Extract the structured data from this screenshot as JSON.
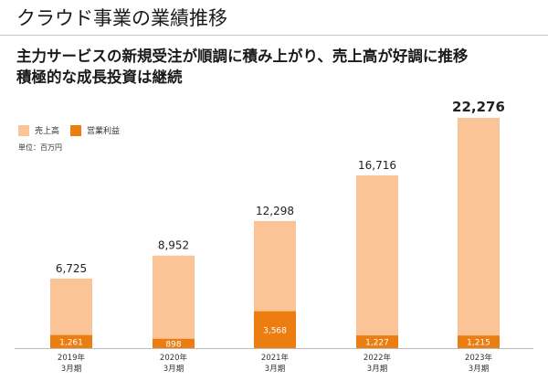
{
  "header": {
    "title": "クラウド事業の業績推移"
  },
  "headline": {
    "line1": "主力サービスの新規受注が順調に積み上がり、売上高が好調に推移",
    "line2": "積極的な成長投資は継続"
  },
  "colors": {
    "revenue": "#fbc497",
    "profit": "#ec7d10",
    "axis": "#bbbbbb"
  },
  "chart_data": {
    "type": "bar",
    "categories": [
      [
        "2019年",
        "3月期"
      ],
      [
        "2020年",
        "3月期"
      ],
      [
        "2021年",
        "3月期"
      ],
      [
        "2022年",
        "3月期"
      ],
      [
        "2023年",
        "3月期"
      ]
    ],
    "series": [
      {
        "name": "売上高",
        "values": [
          6725,
          8952,
          12298,
          16716,
          22276
        ]
      },
      {
        "name": "営業利益",
        "values": [
          1261,
          898,
          3568,
          1227,
          1215
        ]
      }
    ],
    "value_labels": {
      "revenue": [
        "6,725",
        "8,952",
        "12,298",
        "16,716",
        "22,276"
      ],
      "profit": [
        "1,261",
        "898",
        "3,568",
        "1,227",
        "1,215"
      ]
    },
    "unit": "単位：百万円",
    "ylim": [
      0,
      22276
    ],
    "legend_position": "top-left",
    "grid": false
  }
}
